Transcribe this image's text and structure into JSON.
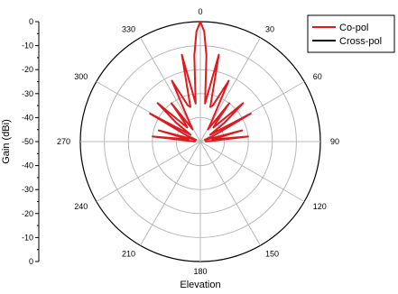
{
  "chart_data": {
    "type": "polar-line",
    "xlabel": "Elevation",
    "ylabel": "Gain (dBi)",
    "angle_ticks": [
      "0",
      "30",
      "60",
      "90",
      "120",
      "150",
      "180",
      "210",
      "240",
      "270",
      "300",
      "330"
    ],
    "radial_ticks": [
      "0",
      "-10",
      "-20",
      "-30",
      "-40",
      "-50",
      "-40",
      "-30",
      "-20",
      "-10",
      "0"
    ],
    "rlim": [
      -50,
      0
    ],
    "grid": true,
    "legend_position": "top-right",
    "series": [
      {
        "name": "Co-pol",
        "color": "#e0191e",
        "points": [
          [
            -90,
            -48
          ],
          [
            -84,
            -30
          ],
          [
            -79,
            -45
          ],
          [
            -75,
            -32
          ],
          [
            -70,
            -48
          ],
          [
            -66,
            -44
          ],
          [
            -61,
            -26
          ],
          [
            -55,
            -45
          ],
          [
            -52,
            -37
          ],
          [
            -48,
            -26
          ],
          [
            -43,
            -42
          ],
          [
            -40,
            -40
          ],
          [
            -37,
            -30
          ],
          [
            -32,
            -44
          ],
          [
            -29,
            -40
          ],
          [
            -25,
            -22
          ],
          [
            -19,
            -34
          ],
          [
            -16,
            -35
          ],
          [
            -12,
            -13
          ],
          [
            -7,
            -34
          ],
          [
            -4,
            -14
          ],
          [
            -2,
            -4
          ],
          [
            0,
            0
          ],
          [
            2,
            -4
          ],
          [
            4,
            -14
          ],
          [
            7,
            -34
          ],
          [
            12,
            -13
          ],
          [
            16,
            -35
          ],
          [
            19,
            -34
          ],
          [
            25,
            -22
          ],
          [
            29,
            -40
          ],
          [
            32,
            -44
          ],
          [
            37,
            -30
          ],
          [
            40,
            -40
          ],
          [
            43,
            -42
          ],
          [
            48,
            -26
          ],
          [
            52,
            -37
          ],
          [
            55,
            -45
          ],
          [
            61,
            -26
          ],
          [
            66,
            -44
          ],
          [
            70,
            -48
          ],
          [
            75,
            -32
          ],
          [
            79,
            -45
          ],
          [
            84,
            -30
          ],
          [
            90,
            -48
          ]
        ]
      },
      {
        "name": "Cross-pol",
        "color": "#000000",
        "points": []
      }
    ]
  }
}
